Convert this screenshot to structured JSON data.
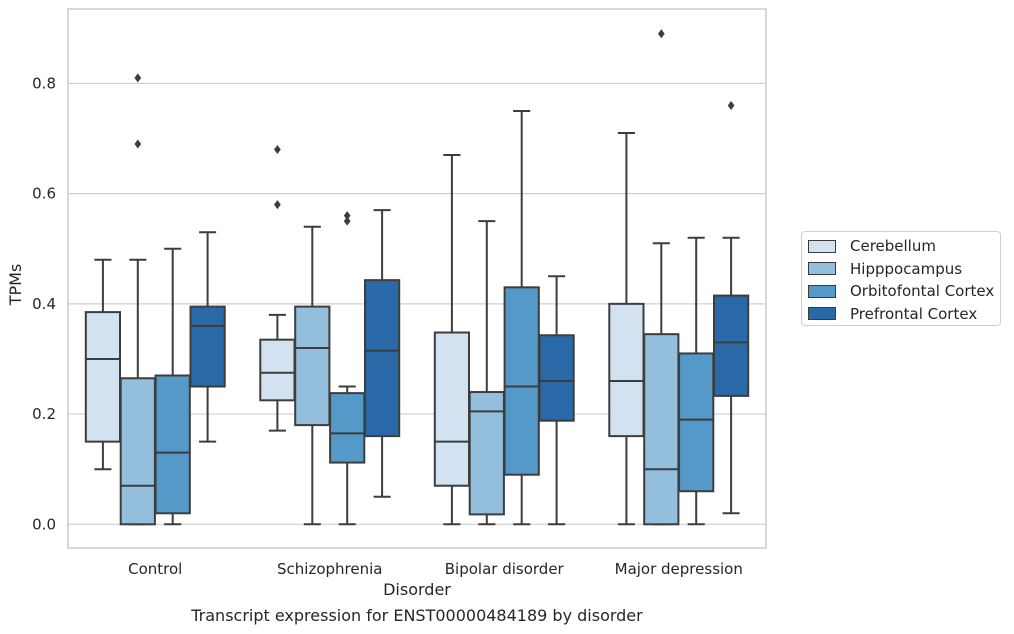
{
  "chart_data": {
    "type": "box",
    "xlabel": "Disorder",
    "ylabel": "TPMs",
    "caption": "Transcript expression for ENST00000484189 by disorder",
    "ylim": [
      -0.043,
      0.935
    ],
    "yticks": [
      0.0,
      0.2,
      0.4,
      0.6,
      0.8
    ],
    "ytick_labels": [
      "0.0",
      "0.2",
      "0.4",
      "0.6",
      "0.8"
    ],
    "grid": "horizontal",
    "legend_position": "right",
    "categories": [
      "Control",
      "Schizophrenia",
      "Bipolar disorder",
      "Major depression"
    ],
    "series": [
      {
        "name": "Cerebellum",
        "color": "#d2e2f1",
        "boxes": [
          {
            "q1": 0.15,
            "median": 0.3,
            "q3": 0.385,
            "whisker_low": 0.1,
            "whisker_high": 0.48,
            "outliers": []
          },
          {
            "q1": 0.225,
            "median": 0.275,
            "q3": 0.335,
            "whisker_low": 0.17,
            "whisker_high": 0.38,
            "outliers": [
              0.58,
              0.68
            ]
          },
          {
            "q1": 0.07,
            "median": 0.15,
            "q3": 0.348,
            "whisker_low": 0.0,
            "whisker_high": 0.67,
            "outliers": []
          },
          {
            "q1": 0.16,
            "median": 0.26,
            "q3": 0.4,
            "whisker_low": 0.0,
            "whisker_high": 0.71,
            "outliers": []
          }
        ]
      },
      {
        "name": "Hipppocampus",
        "color": "#93bfdc",
        "boxes": [
          {
            "q1": 0.0,
            "median": 0.07,
            "q3": 0.265,
            "whisker_low": 0.0,
            "whisker_high": 0.48,
            "outliers": [
              0.69,
              0.81
            ]
          },
          {
            "q1": 0.18,
            "median": 0.32,
            "q3": 0.395,
            "whisker_low": 0.0,
            "whisker_high": 0.54,
            "outliers": []
          },
          {
            "q1": 0.018,
            "median": 0.205,
            "q3": 0.24,
            "whisker_low": 0.0,
            "whisker_high": 0.55,
            "outliers": []
          },
          {
            "q1": 0.0,
            "median": 0.1,
            "q3": 0.345,
            "whisker_low": 0.0,
            "whisker_high": 0.51,
            "outliers": [
              0.89
            ]
          }
        ]
      },
      {
        "name": "Orbitofontal Cortex",
        "color": "#5599c8",
        "boxes": [
          {
            "q1": 0.02,
            "median": 0.13,
            "q3": 0.27,
            "whisker_low": 0.0,
            "whisker_high": 0.5,
            "outliers": []
          },
          {
            "q1": 0.112,
            "median": 0.165,
            "q3": 0.238,
            "whisker_low": 0.0,
            "whisker_high": 0.25,
            "outliers": [
              0.55,
              0.56
            ]
          },
          {
            "q1": 0.09,
            "median": 0.25,
            "q3": 0.43,
            "whisker_low": 0.0,
            "whisker_high": 0.75,
            "outliers": []
          },
          {
            "q1": 0.06,
            "median": 0.19,
            "q3": 0.31,
            "whisker_low": 0.0,
            "whisker_high": 0.52,
            "outliers": []
          }
        ]
      },
      {
        "name": "Prefrontal Cortex",
        "color": "#2a69a8",
        "boxes": [
          {
            "q1": 0.25,
            "median": 0.36,
            "q3": 0.395,
            "whisker_low": 0.15,
            "whisker_high": 0.53,
            "outliers": []
          },
          {
            "q1": 0.16,
            "median": 0.315,
            "q3": 0.443,
            "whisker_low": 0.05,
            "whisker_high": 0.57,
            "outliers": []
          },
          {
            "q1": 0.188,
            "median": 0.26,
            "q3": 0.343,
            "whisker_low": 0.0,
            "whisker_high": 0.45,
            "outliers": []
          },
          {
            "q1": 0.233,
            "median": 0.33,
            "q3": 0.415,
            "whisker_low": 0.02,
            "whisker_high": 0.52,
            "outliers": [
              0.76
            ]
          }
        ]
      }
    ]
  }
}
